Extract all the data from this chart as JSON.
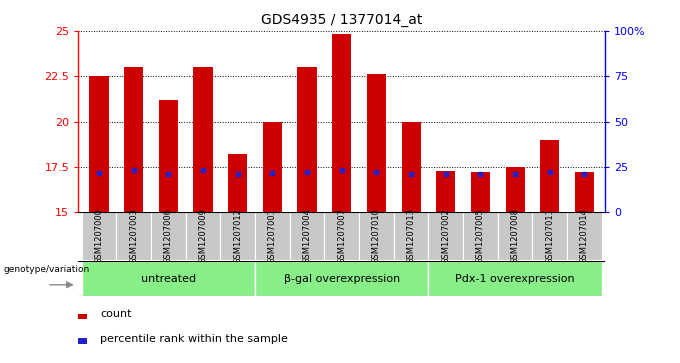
{
  "title": "GDS4935 / 1377014_at",
  "samples": [
    "GSM1207000",
    "GSM1207003",
    "GSM1207006",
    "GSM1207009",
    "GSM1207012",
    "GSM1207001",
    "GSM1207004",
    "GSM1207007",
    "GSM1207010",
    "GSM1207013",
    "GSM1207002",
    "GSM1207005",
    "GSM1207008",
    "GSM1207011",
    "GSM1207014"
  ],
  "count_values": [
    22.5,
    23.0,
    21.2,
    23.0,
    18.2,
    20.0,
    23.0,
    24.8,
    22.6,
    20.0,
    17.3,
    17.2,
    17.5,
    19.0,
    17.2
  ],
  "blue_marker_values": [
    17.15,
    17.35,
    17.1,
    17.35,
    17.1,
    17.15,
    17.2,
    17.35,
    17.25,
    17.1,
    17.1,
    17.1,
    17.1,
    17.2,
    17.1
  ],
  "ylim": [
    15,
    25
  ],
  "yticks": [
    15,
    17.5,
    20,
    22.5,
    25
  ],
  "ytick_labels": [
    "15",
    "17.5",
    "20",
    "22.5",
    "25"
  ],
  "right_yticks_vals": [
    15,
    17.5,
    20,
    22.5,
    25
  ],
  "right_ytick_labels": [
    "0",
    "25",
    "50",
    "75",
    "100%"
  ],
  "bar_color": "#cc0000",
  "blue_color": "#2222cc",
  "bg_color": "#c8c8c8",
  "group_labels": [
    "untreated",
    "β-gal overexpression",
    "Pdx-1 overexpression"
  ],
  "group_ranges": [
    [
      0,
      4
    ],
    [
      5,
      9
    ],
    [
      10,
      14
    ]
  ],
  "group_color": "#88ee88",
  "legend_label_count": "count",
  "legend_label_percentile": "percentile rank within the sample",
  "genotype_label": "genotype/variation",
  "baseline": 15.0,
  "bar_width": 0.55
}
